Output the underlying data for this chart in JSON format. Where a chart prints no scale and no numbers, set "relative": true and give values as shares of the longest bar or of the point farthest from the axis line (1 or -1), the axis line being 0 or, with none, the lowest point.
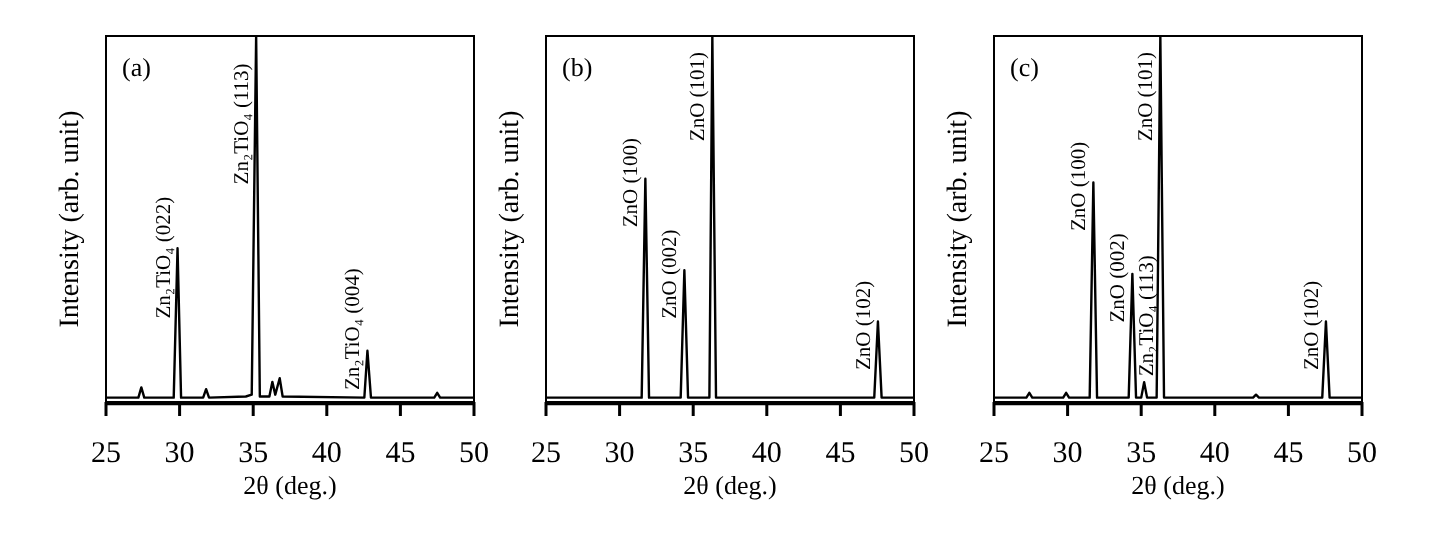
{
  "chart_data": [
    {
      "type": "line",
      "title": "(a)",
      "xlabel": "2θ (deg.)",
      "ylabel": "Intensity (arb. unit)",
      "relative": true,
      "xlim": [
        25,
        50
      ],
      "xticks": [
        25,
        30,
        35,
        40,
        45,
        50
      ],
      "series": [
        {
          "color": "#000000",
          "x": [
            25,
            27.2,
            27.4,
            27.6,
            29.6,
            29.86,
            30.1,
            31.6,
            31.8,
            32.0,
            34.5,
            34.9,
            35.2,
            35.45,
            36.1,
            36.3,
            36.5,
            36.8,
            37.0,
            42.55,
            42.76,
            43.0,
            47.3,
            47.5,
            47.7,
            50
          ],
          "values": [
            0.012,
            0.012,
            0.04,
            0.012,
            0.012,
            0.42,
            0.012,
            0.012,
            0.035,
            0.012,
            0.015,
            0.02,
            1,
            0.015,
            0.015,
            0.055,
            0.02,
            0.065,
            0.015,
            0.012,
            0.14,
            0.012,
            0.012,
            0.025,
            0.012,
            0.012
          ]
        }
      ],
      "annotations": [
        {
          "text": "Zn₂TiO₄ (022)",
          "x": 29.86,
          "y": 0.42
        },
        {
          "text": "Zn₂TiO₄ (113)",
          "x": 35.2,
          "y": 1
        },
        {
          "text": "Zn₂TiO₄ (004)",
          "x": 42.76,
          "y": 0.14
        }
      ]
    },
    {
      "type": "line",
      "title": "(b)",
      "xlabel": "2θ (deg.)",
      "ylabel": "Intensity (arb. unit)",
      "relative": true,
      "xlim": [
        25,
        50
      ],
      "xticks": [
        25,
        30,
        35,
        40,
        45,
        50
      ],
      "series": [
        {
          "color": "#000000",
          "x": [
            25,
            31.5,
            31.75,
            32.0,
            34.15,
            34.4,
            34.65,
            36.1,
            36.3,
            36.55,
            47.3,
            47.55,
            47.8,
            50
          ],
          "values": [
            0.012,
            0.012,
            0.61,
            0.012,
            0.012,
            0.36,
            0.012,
            0.012,
            1,
            0.012,
            0.012,
            0.22,
            0.012,
            0.012
          ]
        }
      ],
      "annotations": [
        {
          "text": "ZnO (100)",
          "x": 31.75,
          "y": 0.61
        },
        {
          "text": "ZnO (002)",
          "x": 34.4,
          "y": 0.36
        },
        {
          "text": "ZnO (101)",
          "x": 36.3,
          "y": 1
        },
        {
          "text": "ZnO (102)",
          "x": 47.55,
          "y": 0.22
        }
      ]
    },
    {
      "type": "line",
      "title": "(c)",
      "xlabel": "2θ (deg.)",
      "ylabel": "Intensity (arb. unit)",
      "relative": true,
      "xlim": [
        25,
        50
      ],
      "xticks": [
        25,
        30,
        35,
        40,
        45,
        50
      ],
      "series": [
        {
          "color": "#000000",
          "x": [
            25,
            27.2,
            27.4,
            27.6,
            29.7,
            29.9,
            30.1,
            31.5,
            31.75,
            32.0,
            34.15,
            34.4,
            34.65,
            35.0,
            35.2,
            35.4,
            36.05,
            36.3,
            36.55,
            42.6,
            42.8,
            43.0,
            47.3,
            47.55,
            47.8,
            50
          ],
          "values": [
            0.012,
            0.012,
            0.025,
            0.012,
            0.012,
            0.025,
            0.012,
            0.012,
            0.6,
            0.012,
            0.012,
            0.35,
            0.012,
            0.012,
            0.054,
            0.012,
            0.012,
            1,
            0.012,
            0.012,
            0.02,
            0.012,
            0.012,
            0.22,
            0.012,
            0.012
          ]
        }
      ],
      "annotations": [
        {
          "text": "ZnO (100)",
          "x": 31.75,
          "y": 0.6
        },
        {
          "text": "ZnO (002)",
          "x": 34.4,
          "y": 0.35
        },
        {
          "text": "Zn₂TiO₄ (113)",
          "x": 35.2,
          "y": 0.054
        },
        {
          "text": "ZnO (101)",
          "x": 36.3,
          "y": 1
        },
        {
          "text": "ZnO (102)",
          "x": 47.55,
          "y": 0.22
        }
      ]
    }
  ]
}
